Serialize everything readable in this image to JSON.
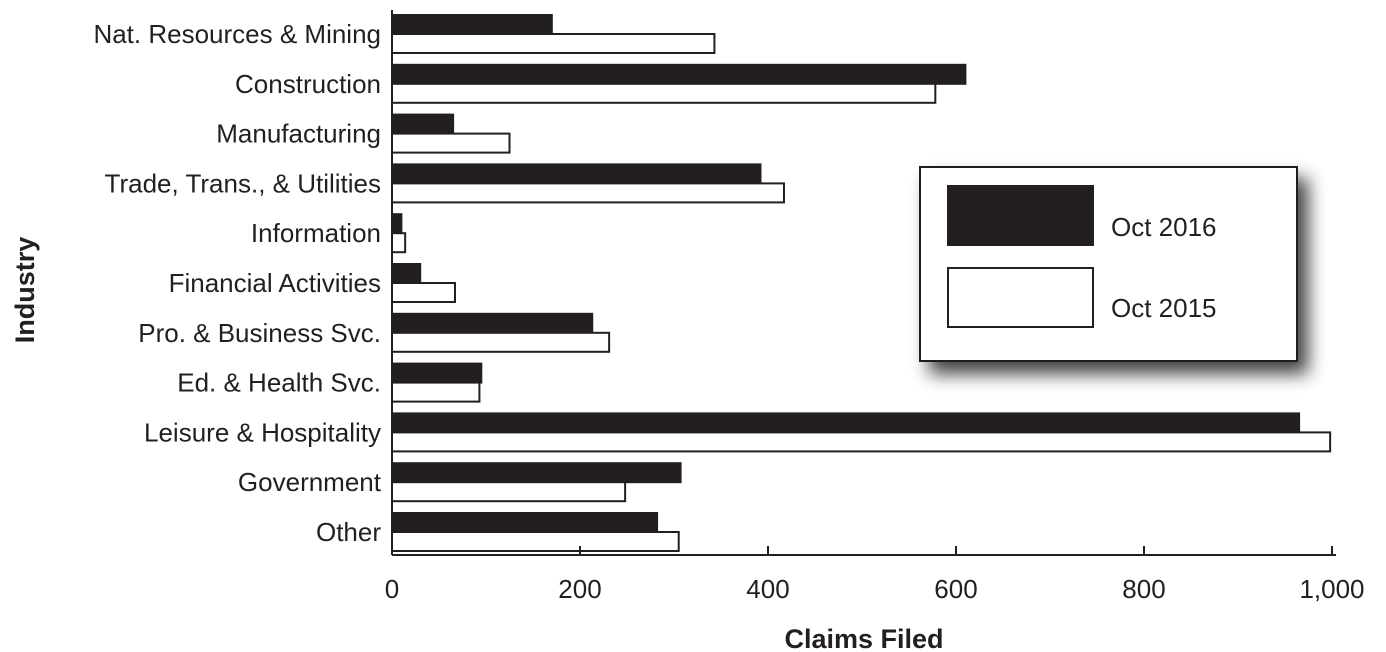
{
  "chart_data": {
    "type": "bar",
    "orientation": "horizontal",
    "categories": [
      "Nat. Resources & Mining",
      "Construction",
      "Manufacturing",
      "Trade, Trans., & Utilities",
      "Information",
      "Financial Activities",
      "Pro. & Business Svc.",
      "Ed. & Health Svc.",
      "Leisure & Hospitality",
      "Government",
      "Other"
    ],
    "series": [
      {
        "name": "Oct 2016",
        "color": "#231f20",
        "values": [
          170,
          610,
          65,
          392,
          10,
          30,
          213,
          95,
          965,
          307,
          282
        ]
      },
      {
        "name": "Oct 2015",
        "color": "#ffffff",
        "values": [
          343,
          578,
          125,
          417,
          14,
          67,
          231,
          93,
          998,
          248,
          305
        ]
      }
    ],
    "xlabel": "Claims Filed",
    "ylabel": "Industry",
    "xlim": [
      0,
      1000
    ],
    "xticks": [
      0,
      200,
      400,
      600,
      800,
      1000
    ],
    "xtick_labels": [
      "0",
      "200",
      "400",
      "600",
      "800",
      "1,000"
    ],
    "legend_position": "right",
    "grid": false
  }
}
